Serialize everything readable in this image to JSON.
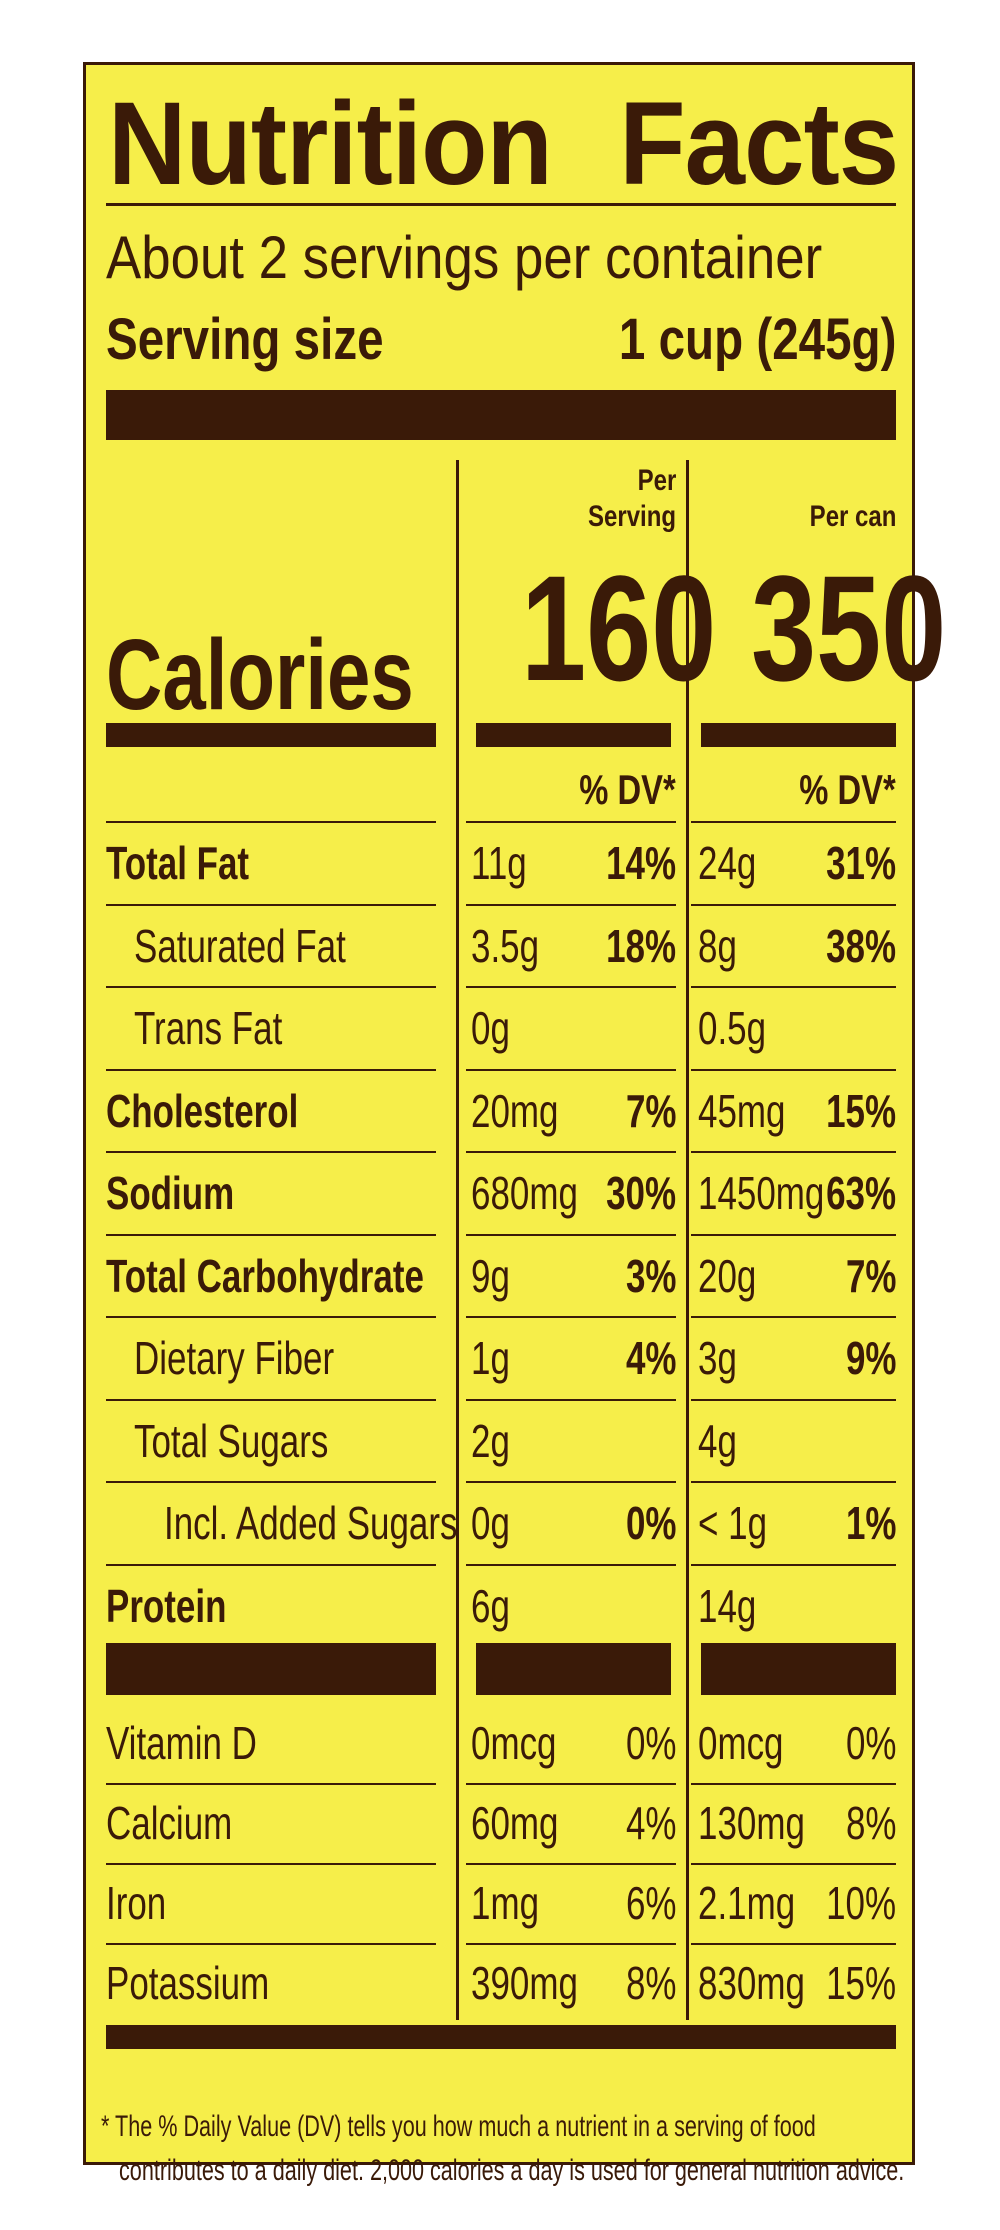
{
  "header": {
    "title_left": "Nutrition",
    "title_right": "Facts",
    "servings": "About 2 servings per container",
    "serving_size_label": "Serving size",
    "serving_size_value": "1 cup (245g)"
  },
  "columns": {
    "per_serving_line1": "Per",
    "per_serving_line2": "Serving",
    "per_can": "Per can",
    "dv_header": "% DV*"
  },
  "calories": {
    "label": "Calories",
    "per_serving": "160",
    "per_can": "350"
  },
  "nutrients": [
    {
      "name": "Total Fat",
      "bold": true,
      "indent": 0,
      "s_amt": "11g",
      "s_dv": "14%",
      "c_amt": "24g",
      "c_dv": "31%"
    },
    {
      "name": "Saturated Fat",
      "bold": false,
      "indent": 1,
      "s_amt": "3.5g",
      "s_dv": "18%",
      "c_amt": "8g",
      "c_dv": "38%"
    },
    {
      "name": "Trans Fat",
      "bold": false,
      "indent": 1,
      "s_amt": "0g",
      "s_dv": "",
      "c_amt": "0.5g",
      "c_dv": ""
    },
    {
      "name": "Cholesterol",
      "bold": true,
      "indent": 0,
      "s_amt": "20mg",
      "s_dv": "7%",
      "c_amt": "45mg",
      "c_dv": "15%"
    },
    {
      "name": "Sodium",
      "bold": true,
      "indent": 0,
      "s_amt": "680mg",
      "s_dv": "30%",
      "c_amt": "1450mg",
      "c_dv": "63%"
    },
    {
      "name": "Total Carbohydrate",
      "bold": true,
      "indent": 0,
      "s_amt": "9g",
      "s_dv": "3%",
      "c_amt": "20g",
      "c_dv": "7%"
    },
    {
      "name": "Dietary Fiber",
      "bold": false,
      "indent": 1,
      "s_amt": "1g",
      "s_dv": "4%",
      "c_amt": "3g",
      "c_dv": "9%"
    },
    {
      "name": "Total Sugars",
      "bold": false,
      "indent": 1,
      "s_amt": "2g",
      "s_dv": "",
      "c_amt": "4g",
      "c_dv": ""
    },
    {
      "name": "Incl. Added Sugars",
      "bold": false,
      "indent": 2,
      "s_amt": "0g",
      "s_dv": "0%",
      "c_amt": "< 1g",
      "c_dv": "1%"
    },
    {
      "name": "Protein",
      "bold": true,
      "indent": 0,
      "s_amt": "6g",
      "s_dv": "",
      "c_amt": "14g",
      "c_dv": ""
    }
  ],
  "vitamins": [
    {
      "name": "Vitamin D",
      "s_amt": "0mcg",
      "s_dv": "0%",
      "c_amt": "0mcg",
      "c_dv": "0%"
    },
    {
      "name": "Calcium",
      "s_amt": "60mg",
      "s_dv": "4%",
      "c_amt": "130mg",
      "c_dv": "8%"
    },
    {
      "name": "Iron",
      "s_amt": "1mg",
      "s_dv": "6%",
      "c_amt": "2.1mg",
      "c_dv": "10%"
    },
    {
      "name": "Potassium",
      "s_amt": "390mg",
      "s_dv": "8%",
      "c_amt": "830mg",
      "c_dv": "15%"
    }
  ],
  "footnote": {
    "line1": "* The % Daily Value (DV) tells you how much a nutrient in a serving of food",
    "line2": "contributes to a daily diet. 2,000 calories a day is used for general nutrition advice."
  },
  "colors": {
    "background": "#f6ee4a",
    "ink": "#3a1a08"
  }
}
